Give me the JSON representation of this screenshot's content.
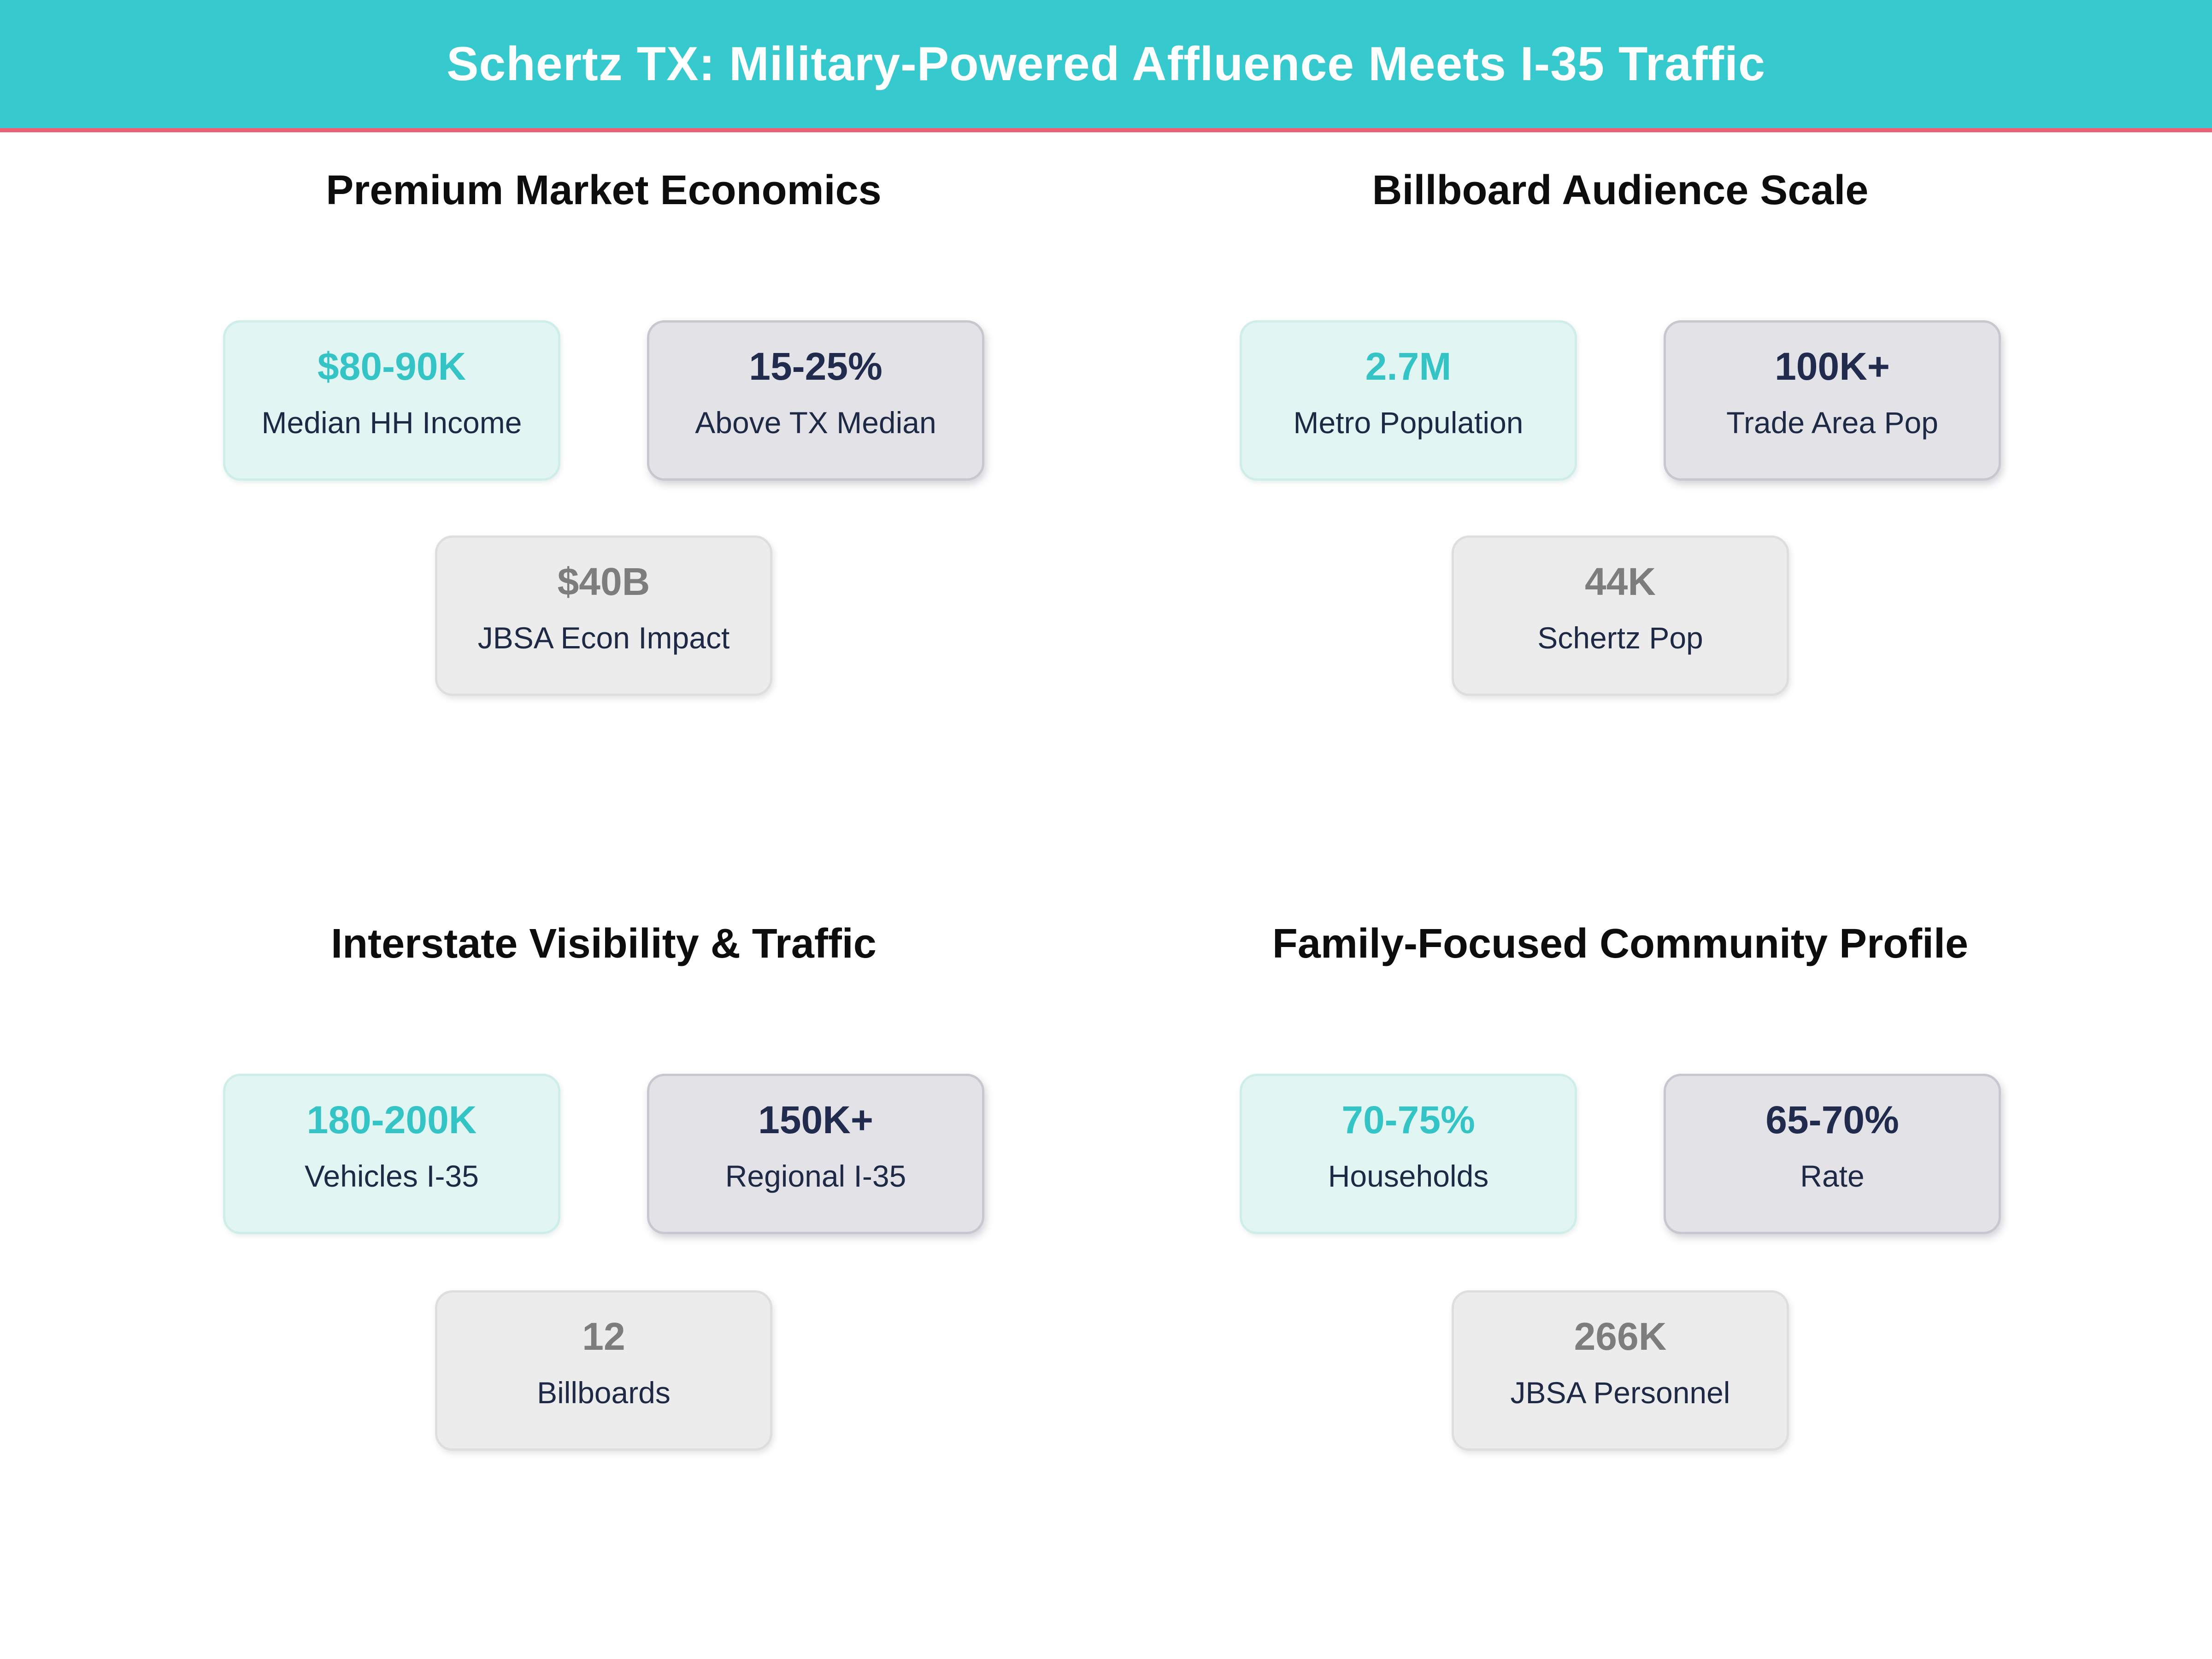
{
  "theme": {
    "banner_color": "#36c9ce",
    "stripe_color": "#ef5f74",
    "mint_card_bg": "#e1f6f3",
    "mint_card_border": "#cfeeea",
    "slate_card_bg": "#e2e2e7",
    "slate_card_border": "#c7c7d0",
    "plain_card_bg": "#ececec",
    "plain_card_border": "#dedede",
    "teal_value_color": "#35c4c6",
    "navy_value_color": "#212b4d",
    "gray_value_color": "#7d7d7d",
    "label_color": "#1e2a45",
    "heading_color": "#0d0d0d",
    "title_color": "#ffffff"
  },
  "chart_data": {
    "type": "table",
    "title": "Schertz TX: Military-Powered Affluence Meets I-35 Traffic",
    "layout": "2x2 grid of KPI indicator panels, each with three stat cards",
    "panels": [
      {
        "heading": "Premium Market Economics",
        "metrics": [
          {
            "value": "$80-90K",
            "label": "Median HH Income",
            "style": "mint-teal"
          },
          {
            "value": "15-25%",
            "label": "Above TX Median",
            "style": "slate-navy"
          },
          {
            "value": "$40B",
            "label": "JBSA Econ Impact",
            "style": "plain-gray"
          }
        ]
      },
      {
        "heading": "Billboard Audience Scale",
        "metrics": [
          {
            "value": "2.7M",
            "label": "Metro Population",
            "style": "mint-teal"
          },
          {
            "value": "100K+",
            "label": "Trade Area Pop",
            "style": "slate-navy"
          },
          {
            "value": "44K",
            "label": "Schertz Pop",
            "style": "plain-gray"
          }
        ]
      },
      {
        "heading": "Interstate Visibility & Traffic",
        "metrics": [
          {
            "value": "180-200K",
            "label": "Vehicles I-35",
            "style": "mint-teal"
          },
          {
            "value": "150K+",
            "label": "Regional I-35",
            "style": "slate-navy"
          },
          {
            "value": "12",
            "label": "Billboards",
            "style": "plain-gray"
          }
        ]
      },
      {
        "heading": "Family-Focused Community Profile",
        "metrics": [
          {
            "value": "70-75%",
            "label": "Households",
            "style": "mint-teal"
          },
          {
            "value": "65-70%",
            "label": "Rate",
            "style": "slate-navy"
          },
          {
            "value": "266K",
            "label": "JBSA Personnel",
            "style": "plain-gray"
          }
        ]
      }
    ]
  }
}
